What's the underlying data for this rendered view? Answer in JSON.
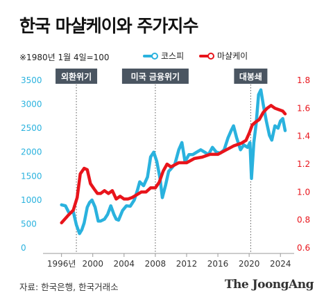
{
  "chart_data": {
    "type": "line",
    "title": "한국 마샬케이와 주가지수",
    "subtitle": "※1980년 1월 4일=100",
    "x_ticks": [
      "1996년",
      "2000",
      "2004",
      "2008",
      "2012",
      "2016",
      "2020",
      "2024"
    ],
    "xlim": [
      1994.7,
      2025.4
    ],
    "left_axis": {
      "series": "코스피",
      "ylim": [
        0,
        3500
      ],
      "ticks": [
        "0",
        "500",
        "1000",
        "1500",
        "2000",
        "2500",
        "3000",
        "3500"
      ]
    },
    "right_axis": {
      "series": "마샬케이",
      "ylim": [
        0.6,
        1.8
      ],
      "ticks": [
        "0.6",
        "0.8",
        "1.0",
        "1.2",
        "1.4",
        "1.6",
        "1.8"
      ]
    },
    "annotations": [
      {
        "label": "외환위기",
        "x": 1997.9
      },
      {
        "label": "미국 금융위기",
        "x": 2008.0
      },
      {
        "label": "대봉쇄",
        "x": 2020.2
      }
    ],
    "series": [
      {
        "name": "코스피",
        "axis": "left",
        "color": "#2ab2de",
        "x": [
          1996.0,
          1996.5,
          1997.0,
          1997.5,
          1997.9,
          1998.3,
          1998.6,
          1998.9,
          1999.3,
          1999.6,
          1999.9,
          2000.3,
          2000.7,
          2001.0,
          2001.5,
          2001.9,
          2002.3,
          2002.7,
          2003.0,
          2003.3,
          2003.8,
          2004.3,
          2004.8,
          2005.3,
          2005.7,
          2006.0,
          2006.5,
          2007.0,
          2007.4,
          2007.8,
          2008.2,
          2008.6,
          2008.9,
          2009.3,
          2009.7,
          2010.0,
          2010.5,
          2011.0,
          2011.4,
          2011.8,
          2012.3,
          2012.8,
          2013.3,
          2013.8,
          2014.3,
          2014.8,
          2015.3,
          2015.8,
          2016.3,
          2016.8,
          2017.3,
          2017.7,
          2018.0,
          2018.4,
          2018.9,
          2019.3,
          2019.8,
          2020.1,
          2020.3,
          2020.6,
          2020.9,
          2021.2,
          2021.5,
          2021.8,
          2022.2,
          2022.6,
          2022.9,
          2023.3,
          2023.7,
          2024.0,
          2024.3,
          2024.6
        ],
        "y": [
          900,
          880,
          720,
          760,
          480,
          300,
          380,
          520,
          850,
          950,
          1000,
          850,
          560,
          560,
          600,
          700,
          880,
          700,
          600,
          580,
          780,
          880,
          870,
          1000,
          1200,
          1380,
          1300,
          1480,
          1900,
          2000,
          1800,
          1450,
          1050,
          1300,
          1600,
          1650,
          1750,
          2050,
          2200,
          1800,
          1950,
          1950,
          2000,
          2050,
          2000,
          1950,
          2100,
          2000,
          1980,
          2050,
          2300,
          2450,
          2550,
          2300,
          2050,
          2150,
          2100,
          2200,
          1450,
          2200,
          2600,
          3200,
          3300,
          3000,
          2650,
          2350,
          2250,
          2550,
          2500,
          2650,
          2700,
          2450
        ]
      },
      {
        "name": "마샬케이",
        "axis": "right",
        "color": "#e8141b",
        "x": [
          1996.0,
          1996.8,
          1997.5,
          1998.0,
          1998.4,
          1998.9,
          1999.3,
          1999.7,
          2000.2,
          2000.6,
          2001.0,
          2001.5,
          2002.0,
          2002.5,
          2003.0,
          2003.5,
          2004.0,
          2004.5,
          2005.0,
          2005.6,
          2006.2,
          2006.8,
          2007.4,
          2008.0,
          2008.5,
          2009.0,
          2009.5,
          2010.0,
          2011.0,
          2012.0,
          2013.0,
          2014.0,
          2015.0,
          2016.0,
          2017.0,
          2018.0,
          2019.0,
          2019.6,
          2020.0,
          2020.4,
          2020.8,
          2021.3,
          2021.8,
          2022.3,
          2022.8,
          2023.3,
          2023.8,
          2024.3,
          2024.6
        ],
        "y": [
          0.78,
          0.83,
          0.87,
          0.96,
          1.13,
          1.17,
          1.16,
          1.06,
          1.02,
          0.99,
          0.99,
          1.01,
          0.99,
          1.01,
          0.95,
          0.97,
          0.95,
          0.95,
          0.96,
          0.98,
          1.0,
          1.0,
          1.03,
          1.03,
          1.07,
          1.15,
          1.2,
          1.18,
          1.21,
          1.21,
          1.24,
          1.25,
          1.27,
          1.27,
          1.3,
          1.33,
          1.35,
          1.37,
          1.42,
          1.48,
          1.5,
          1.52,
          1.57,
          1.6,
          1.62,
          1.6,
          1.59,
          1.58,
          1.56
        ]
      }
    ]
  },
  "source": "자료: 한국은행, 한국거래소",
  "brand": "The JoongAng"
}
